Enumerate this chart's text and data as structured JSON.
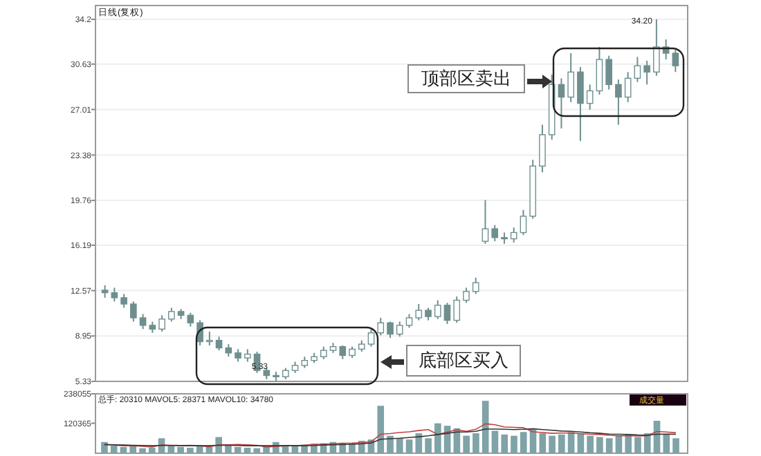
{
  "chart_data": [
    {
      "type": "candlestick",
      "title": "日线(复权)",
      "categories": [
        null,
        null,
        null,
        null,
        null,
        null,
        null,
        null,
        null,
        null,
        null,
        null,
        null,
        null,
        null,
        null,
        null,
        null,
        null,
        null,
        null,
        null,
        null,
        null,
        null,
        null,
        null,
        null,
        null,
        null,
        null,
        null,
        null,
        null,
        null,
        null,
        null,
        null,
        null,
        null,
        null,
        null,
        null,
        null,
        null,
        null,
        null,
        null,
        null,
        null,
        null,
        null,
        null,
        null,
        null,
        null,
        null,
        null,
        null,
        null,
        null
      ],
      "ohlc": [
        [
          12.6,
          13.0,
          12.0,
          12.4
        ],
        [
          12.4,
          12.8,
          11.7,
          12.0
        ],
        [
          12.0,
          12.3,
          11.2,
          11.5
        ],
        [
          11.5,
          11.7,
          10.1,
          10.4
        ],
        [
          10.4,
          10.7,
          9.5,
          9.8
        ],
        [
          9.8,
          10.1,
          9.2,
          9.5
        ],
        [
          9.5,
          10.6,
          9.3,
          10.3
        ],
        [
          10.3,
          11.2,
          10.1,
          10.9
        ],
        [
          10.9,
          11.1,
          10.3,
          10.6
        ],
        [
          10.6,
          10.8,
          9.7,
          10.0
        ],
        [
          10.0,
          10.2,
          8.2,
          8.5
        ],
        [
          8.5,
          9.3,
          8.2,
          8.6
        ],
        [
          8.6,
          8.9,
          7.8,
          8.0
        ],
        [
          8.0,
          8.3,
          7.3,
          7.6
        ],
        [
          7.6,
          7.9,
          6.9,
          7.2
        ],
        [
          7.2,
          7.9,
          6.9,
          7.5
        ],
        [
          7.5,
          7.7,
          6.0,
          6.2
        ],
        [
          6.2,
          6.4,
          5.5,
          5.8
        ],
        [
          5.8,
          6.1,
          5.33,
          5.7
        ],
        [
          5.7,
          6.4,
          5.5,
          6.2
        ],
        [
          6.2,
          6.9,
          6.0,
          6.6
        ],
        [
          6.6,
          7.3,
          6.4,
          7.0
        ],
        [
          7.0,
          7.6,
          6.8,
          7.3
        ],
        [
          7.3,
          8.1,
          7.1,
          7.8
        ],
        [
          7.8,
          8.4,
          7.6,
          8.1
        ],
        [
          8.1,
          8.2,
          7.1,
          7.4
        ],
        [
          7.4,
          8.1,
          7.2,
          7.9
        ],
        [
          7.9,
          8.6,
          7.7,
          8.3
        ],
        [
          8.3,
          9.5,
          8.1,
          9.2
        ],
        [
          9.2,
          10.4,
          9.0,
          10.0
        ],
        [
          10.0,
          10.1,
          8.8,
          9.1
        ],
        [
          9.1,
          10.1,
          8.9,
          9.8
        ],
        [
          9.8,
          10.7,
          9.6,
          10.4
        ],
        [
          10.4,
          11.5,
          10.2,
          11.0
        ],
        [
          11.0,
          11.2,
          10.2,
          10.5
        ],
        [
          10.5,
          11.8,
          10.3,
          11.4
        ],
        [
          11.4,
          11.6,
          9.9,
          10.2
        ],
        [
          10.2,
          12.1,
          10.0,
          11.8
        ],
        [
          11.8,
          12.8,
          11.6,
          12.5
        ],
        [
          12.5,
          13.6,
          12.3,
          13.2
        ],
        [
          16.5,
          19.8,
          16.3,
          17.5
        ],
        [
          17.5,
          17.8,
          16.5,
          16.8
        ],
        [
          16.8,
          17.2,
          16.3,
          16.7
        ],
        [
          16.7,
          17.6,
          16.4,
          17.2
        ],
        [
          17.2,
          19.0,
          17.0,
          18.5
        ],
        [
          18.5,
          23.0,
          18.3,
          22.5
        ],
        [
          22.5,
          25.8,
          22.0,
          25.0
        ],
        [
          25.0,
          29.8,
          24.6,
          29.0
        ],
        [
          29.0,
          29.5,
          25.5,
          28.0
        ],
        [
          28.0,
          31.5,
          27.6,
          30.0
        ],
        [
          30.0,
          30.4,
          24.5,
          27.5
        ],
        [
          27.5,
          29.0,
          27.0,
          28.5
        ],
        [
          28.5,
          32.0,
          28.2,
          31.0
        ],
        [
          31.0,
          31.3,
          28.6,
          29.0
        ],
        [
          29.0,
          29.4,
          25.8,
          28.0
        ],
        [
          28.0,
          30.0,
          27.6,
          29.5
        ],
        [
          29.5,
          31.2,
          29.2,
          30.5
        ],
        [
          30.5,
          30.9,
          29.0,
          30.0
        ],
        [
          30.0,
          34.2,
          29.7,
          32.0
        ],
        [
          32.0,
          32.6,
          31.0,
          31.5
        ],
        [
          31.5,
          31.8,
          30.0,
          30.5
        ]
      ],
      "color": "#6f8f8f",
      "ylim": [
        5.33,
        34.2
      ],
      "yticks": [
        5.33,
        8.95,
        12.57,
        16.19,
        19.76,
        23.38,
        27.01,
        30.63,
        34.2
      ],
      "grid": "y",
      "annotations": [
        "顶部区卖出",
        "底部区买入",
        "34.20",
        "5.33"
      ]
    },
    {
      "type": "bar",
      "title": "总手: 20310 MAVOL5: 28371 MAVOL10: 34780",
      "categories": [
        null,
        null,
        null,
        null,
        null,
        null,
        null,
        null,
        null,
        null,
        null,
        null,
        null,
        null,
        null,
        null,
        null,
        null,
        null,
        null,
        null,
        null,
        null,
        null,
        null,
        null,
        null,
        null,
        null,
        null,
        null,
        null,
        null,
        null,
        null,
        null,
        null,
        null,
        null,
        null,
        null,
        null,
        null,
        null,
        null,
        null,
        null,
        null,
        null,
        null,
        null,
        null,
        null,
        null,
        null,
        null,
        null,
        null,
        null,
        null,
        null
      ],
      "series": [
        {
          "type": "bar",
          "color": "#7fa3a6",
          "values": [
            45000,
            30000,
            25000,
            28000,
            20000,
            22000,
            60000,
            30000,
            25000,
            22000,
            28000,
            25000,
            65000,
            30000,
            25000,
            22000,
            20000,
            25000,
            45000,
            30000,
            32000,
            35000,
            38000,
            40000,
            45000,
            42000,
            40000,
            50000,
            55000,
            190000,
            70000,
            60000,
            55000,
            80000,
            60000,
            120000,
            110000,
            100000,
            70000,
            80000,
            210000,
            90000,
            75000,
            70000,
            85000,
            95000,
            80000,
            70000,
            75000,
            85000,
            80000,
            70000,
            65000,
            60000,
            70000,
            75000,
            65000,
            80000,
            130000,
            75000,
            60000
          ]
        },
        {
          "type": "line",
          "color": "#c04040",
          "values": [
            35000,
            33000,
            30000,
            30000,
            28000,
            25000,
            34000,
            32000,
            31000,
            32000,
            30000,
            26000,
            34000,
            34000,
            35000,
            34000,
            32000,
            25000,
            27000,
            30000,
            30000,
            32000,
            36000,
            36000,
            38000,
            40000,
            41000,
            43000,
            46000,
            76000,
            79000,
            83000,
            86000,
            91000,
            95000,
            75000,
            85000,
            94000,
            88000,
            96000,
            118000,
            114000,
            105000,
            104000,
            102000,
            86000,
            83000,
            80000,
            81000,
            81000,
            78000,
            76000,
            75000,
            72000,
            70000,
            70000,
            69000,
            70000,
            87000,
            85000,
            82000
          ]
        },
        {
          "type": "line",
          "color": "#333333",
          "values": [
            35000,
            34000,
            33000,
            32000,
            31000,
            30000,
            31000,
            31000,
            30000,
            30000,
            30000,
            30000,
            32000,
            32000,
            31000,
            30000,
            30000,
            30000,
            30000,
            31000,
            30000,
            30000,
            31000,
            33000,
            34000,
            35000,
            36000,
            38000,
            41000,
            56000,
            58000,
            60000,
            63000,
            66000,
            70000,
            75000,
            80000,
            85000,
            85000,
            88000,
            97000,
            97000,
            96000,
            95000,
            96000,
            98000,
            95000,
            92000,
            89000,
            88000,
            85000,
            82000,
            80000,
            77000,
            76000,
            75000,
            73000,
            72000,
            76000,
            77000,
            76000
          ]
        }
      ],
      "ylim": [
        0,
        238055
      ],
      "yticks": [
        120365,
        238055
      ],
      "annotations": [
        "成交量"
      ]
    }
  ]
}
